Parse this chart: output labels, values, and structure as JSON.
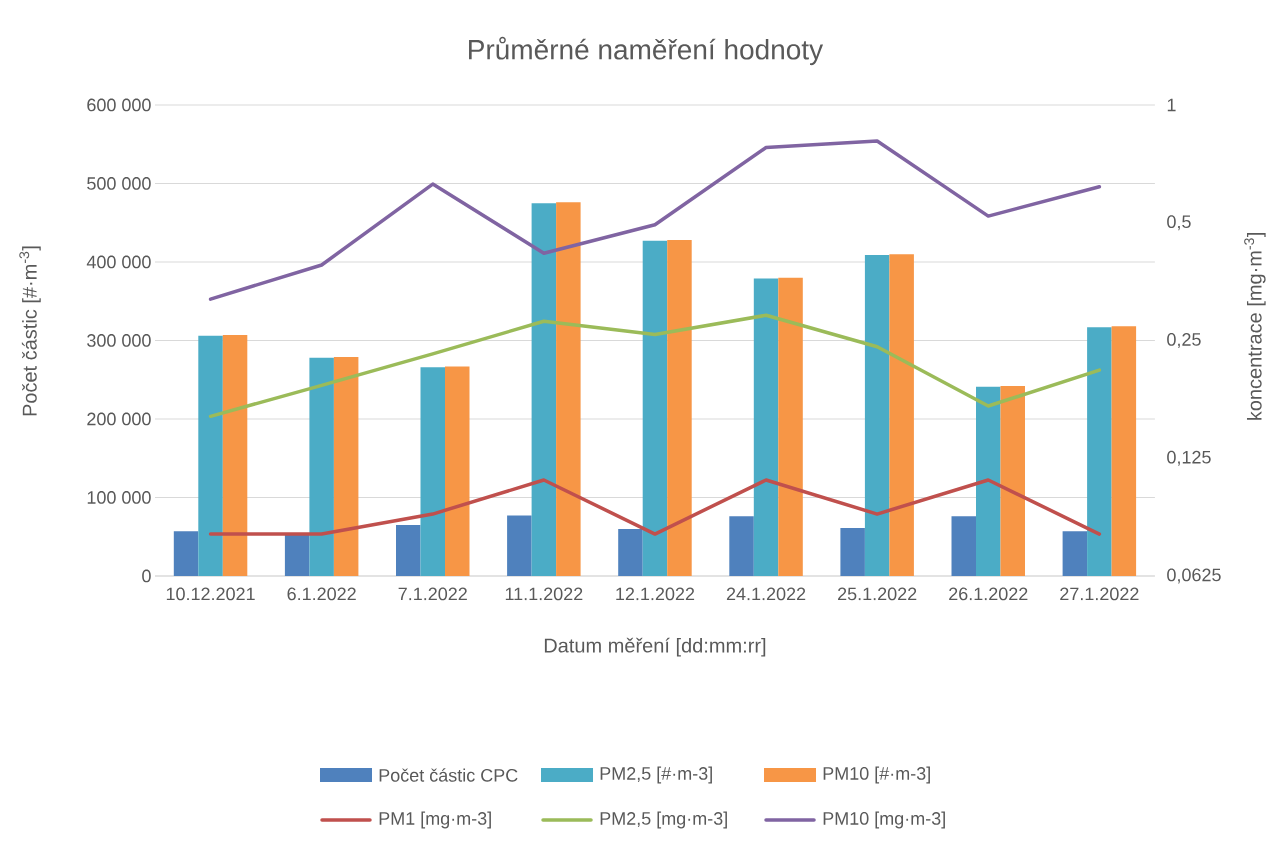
{
  "chart_data": {
    "type": "bar",
    "title": "Průměrné naměření hodnoty",
    "xlabel": "Datum měření [dd:mm:rr]",
    "ylabel": "Počet částic [#·m$^{-3}$]",
    "y2label": "koncentrace [mg·m$^{-3}$]",
    "categories": [
      "10.12.2021",
      "6.1.2022",
      "7.1.2022",
      "11.1.2022",
      "12.1.2022",
      "24.1.2022",
      "25.1.2022",
      "26.1.2022",
      "27.1.2022"
    ],
    "series": [
      {
        "name": "Počet částic CPC",
        "color": "#4f81bd",
        "values": [
          57000,
          53000,
          65000,
          77000,
          60000,
          76000,
          61000,
          76000,
          57000
        ]
      },
      {
        "name": "PM2,5 [#·m-3]",
        "color": "#4bacc6",
        "values": [
          306000,
          278000,
          266000,
          475000,
          427000,
          379000,
          409000,
          241000,
          317000
        ]
      },
      {
        "name": "PM10 [#·m-3]",
        "color": "#f79646",
        "values": [
          307000,
          279000,
          267000,
          476000,
          428000,
          380000,
          410000,
          242000,
          318000
        ]
      },
      {
        "name": "PM1 [mg·m-3]",
        "type": "line",
        "axis": "y2",
        "color": "#c0504d",
        "values": [
          0.08,
          0.08,
          0.09,
          0.11,
          0.08,
          0.11,
          0.09,
          0.11,
          0.08
        ]
      },
      {
        "name": "PM2,5 [mg·m-3]",
        "type": "line",
        "axis": "y2",
        "color": "#9bbb59",
        "values": [
          0.16,
          0.192,
          0.231,
          0.28,
          0.259,
          0.29,
          0.241,
          0.17,
          0.21
        ]
      },
      {
        "name": "PM10 [mg·m-3]",
        "type": "line",
        "axis": "y2",
        "color": "#8064a2",
        "values": [
          0.319,
          0.39,
          0.628,
          0.418,
          0.494,
          0.779,
          0.809,
          0.52,
          0.618
        ]
      }
    ],
    "ylim": [
      0,
      600000
    ],
    "yticks": [
      {
        "value": 0,
        "label": "0"
      },
      {
        "value": 100000,
        "label": "100 000"
      },
      {
        "value": 200000,
        "label": "200 000"
      },
      {
        "value": 300000,
        "label": "300 000"
      },
      {
        "value": 400000,
        "label": "400 000"
      },
      {
        "value": 500000,
        "label": "500 000"
      },
      {
        "value": 600000,
        "label": "600 000"
      }
    ],
    "y2lim": [
      0.0625,
      1
    ],
    "y2ticks": [
      {
        "value": 0.0625,
        "label": "0,0625"
      },
      {
        "value": 0.125,
        "label": "0,125"
      },
      {
        "value": 0.25,
        "label": "0,25"
      },
      {
        "value": 0.5,
        "label": "0,5"
      },
      {
        "value": 1,
        "label": "1"
      }
    ],
    "log": "y2",
    "grid": "y",
    "legend": "bottom"
  }
}
